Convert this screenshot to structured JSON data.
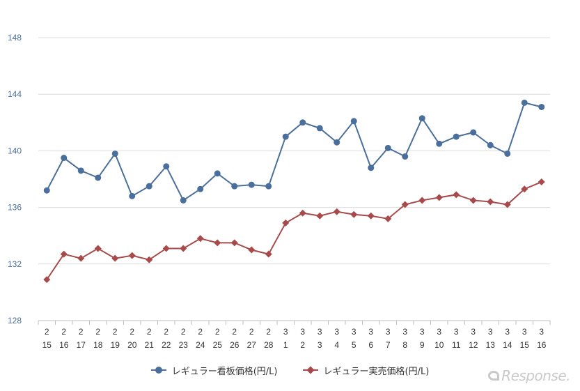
{
  "chart_data": {
    "type": "line",
    "ylim": [
      128,
      148
    ],
    "yticks": [
      "128",
      "132",
      "136",
      "140",
      "144",
      "148"
    ],
    "categories": [
      [
        "2",
        "15"
      ],
      [
        "2",
        "16"
      ],
      [
        "2",
        "17"
      ],
      [
        "2",
        "18"
      ],
      [
        "2",
        "19"
      ],
      [
        "2",
        "20"
      ],
      [
        "2",
        "21"
      ],
      [
        "2",
        "22"
      ],
      [
        "2",
        "23"
      ],
      [
        "2",
        "24"
      ],
      [
        "2",
        "25"
      ],
      [
        "2",
        "26"
      ],
      [
        "2",
        "27"
      ],
      [
        "2",
        "28"
      ],
      [
        "3",
        "1"
      ],
      [
        "3",
        "2"
      ],
      [
        "3",
        "3"
      ],
      [
        "3",
        "4"
      ],
      [
        "3",
        "5"
      ],
      [
        "3",
        "6"
      ],
      [
        "3",
        "7"
      ],
      [
        "3",
        "8"
      ],
      [
        "3",
        "9"
      ],
      [
        "3",
        "10"
      ],
      [
        "3",
        "11"
      ],
      [
        "3",
        "12"
      ],
      [
        "3",
        "13"
      ],
      [
        "3",
        "14"
      ],
      [
        "3",
        "15"
      ],
      [
        "3",
        "16"
      ]
    ],
    "series": [
      {
        "name": "レギュラー看板価格(円/L)",
        "color": "#4a6f9c",
        "marker": "circle",
        "values": [
          137.2,
          139.5,
          138.6,
          138.1,
          139.8,
          136.8,
          137.5,
          138.9,
          136.5,
          137.3,
          138.4,
          137.5,
          137.6,
          137.5,
          141.0,
          142.0,
          141.6,
          140.6,
          142.1,
          138.8,
          140.2,
          139.6,
          142.3,
          140.5,
          141.0,
          141.3,
          140.4,
          139.8,
          143.4,
          143.1
        ]
      },
      {
        "name": "レギュラー実売価格(円/L)",
        "color": "#a94a4a",
        "marker": "diamond",
        "values": [
          130.9,
          132.7,
          132.4,
          133.1,
          132.4,
          132.6,
          132.3,
          133.1,
          133.1,
          133.8,
          133.5,
          133.5,
          133.0,
          132.7,
          134.9,
          135.6,
          135.4,
          135.7,
          135.5,
          135.4,
          135.2,
          136.2,
          136.5,
          136.7,
          136.9,
          136.5,
          136.4,
          136.2,
          137.3,
          137.8
        ]
      }
    ],
    "grid": true,
    "legend_position": "bottom"
  },
  "watermark": {
    "text": "Response."
  }
}
